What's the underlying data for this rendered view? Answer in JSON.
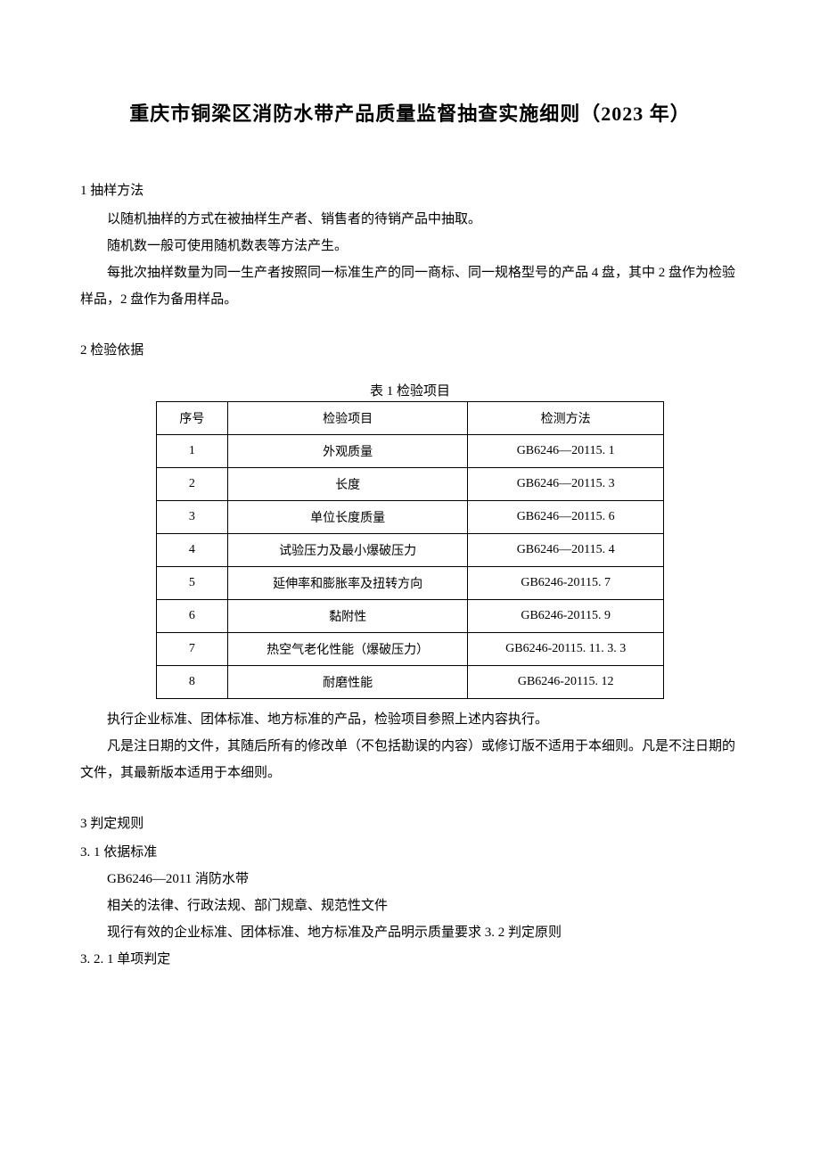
{
  "title": "重庆市铜梁区消防水带产品质量监督抽查实施细则（2023 年）",
  "section1": {
    "heading": "1 抽样方法",
    "p1": "以随机抽样的方式在被抽样生产者、销售者的待销产品中抽取。",
    "p2": "随机数一般可使用随机数表等方法产生。",
    "p3": "每批次抽样数量为同一生产者按照同一标准生产的同一商标、同一规格型号的产品 4 盘，其中 2 盘作为检验样品，2 盘作为备用样品。"
  },
  "section2": {
    "heading": "2 检验依据",
    "tableCaption": "表 1 检验项目",
    "table": {
      "headers": [
        "序号",
        "检验项目",
        "检测方法"
      ],
      "rows": [
        [
          "1",
          "外观质量",
          "GB6246—20115. 1"
        ],
        [
          "2",
          "长度",
          "GB6246—20115. 3"
        ],
        [
          "3",
          "单位长度质量",
          "GB6246—20115. 6"
        ],
        [
          "4",
          "试验压力及最小爆破压力",
          "GB6246—20115. 4"
        ],
        [
          "5",
          "延伸率和膨胀率及扭转方向",
          "GB6246-20115. 7"
        ],
        [
          "6",
          "黏附性",
          "GB6246-20115. 9"
        ],
        [
          "7",
          "热空气老化性能（爆破压力）",
          "GB6246-20115. 11. 3. 3"
        ],
        [
          "8",
          "耐磨性能",
          "GB6246-20115. 12"
        ]
      ]
    },
    "afterTable1": "执行企业标准、团体标准、地方标准的产品，检验项目参照上述内容执行。",
    "afterTable2": "凡是注日期的文件，其随后所有的修改单（不包括勘误的内容）或修订版不适用于本细则。凡是不注日期的文件，其最新版本适用于本细则。"
  },
  "section3": {
    "heading": "3 判定规则",
    "sub1": "3. 1 依据标准",
    "p1": "GB6246—2011 消防水带",
    "p2": "相关的法律、行政法规、部门规章、规范性文件",
    "p3": "现行有效的企业标准、团体标准、地方标准及产品明示质量要求 3. 2 判定原则",
    "sub2": "3. 2. 1 单项判定"
  }
}
